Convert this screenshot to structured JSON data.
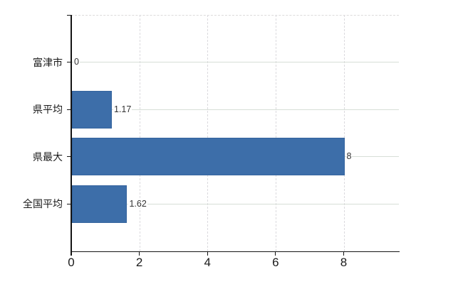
{
  "chart_data": {
    "type": "bar",
    "orientation": "horizontal",
    "title": "",
    "categories": [
      "富津市",
      "県平均",
      "県最大",
      "全国平均"
    ],
    "values": [
      0,
      1.17,
      8,
      1.62
    ],
    "value_labels": [
      "0",
      "1.17",
      "8",
      "1.62"
    ],
    "x_ticks": [
      0,
      2,
      4,
      6,
      8
    ],
    "x_tick_labels": [
      "0",
      "2",
      "4",
      "6",
      "8"
    ],
    "xlim": [
      0,
      9.62
    ],
    "grid": true,
    "legend": false,
    "colors": {
      "bar": "#3d6ea9",
      "bar_border": "#35649e",
      "axis": "#141414",
      "h_grid": "#d7ded7",
      "v_grid": "#dbdade",
      "top_border": "#dcdada",
      "category_text": "#1a1a1a",
      "tick_text": "#1a1a1a",
      "value_text": "#333333",
      "background": "#ffffff"
    }
  }
}
